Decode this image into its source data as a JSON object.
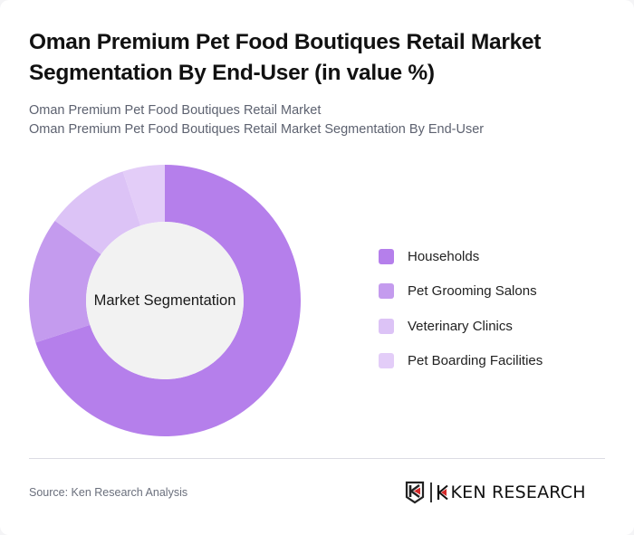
{
  "header": {
    "title": "Oman Premium Pet Food Boutiques Retail Market Segmentation By End-User (in value %)",
    "subtitle_line1": "Oman Premium Pet Food Boutiques Retail Market",
    "subtitle_line2": "Oman Premium Pet Food Boutiques Retail Market Segmentation By End-User"
  },
  "chart_data": {
    "type": "pie",
    "variant": "donut",
    "title": "Oman Premium Pet Food Boutiques Retail Market Segmentation By End-User (in value %)",
    "center_label": "Market Segmentation",
    "categories": [
      "Households",
      "Pet Grooming Salons",
      "Veterinary Clinics",
      "Pet Boarding Facilities"
    ],
    "values": [
      70,
      15,
      10,
      5
    ],
    "unit": "%",
    "colors": [
      "#b57feb",
      "#c49bee",
      "#dcc3f6",
      "#e3cdf8"
    ],
    "start_angle": "12 o'clock, clockwise",
    "legend_position": "right"
  },
  "legend": {
    "items": [
      {
        "label": "Households",
        "color": "#b57feb"
      },
      {
        "label": "Pet Grooming Salons",
        "color": "#c49bee"
      },
      {
        "label": "Veterinary Clinics",
        "color": "#dcc3f6"
      },
      {
        "label": "Pet Boarding Facilities",
        "color": "#e3cdf8"
      }
    ]
  },
  "footer": {
    "source": "Source: Ken Research Analysis",
    "logo_text": "KEN RESEARCH",
    "logo_accent": "#d42a2a"
  },
  "colors": {
    "center_fill": "#f2f2f2",
    "divider": "#dcdce3"
  }
}
